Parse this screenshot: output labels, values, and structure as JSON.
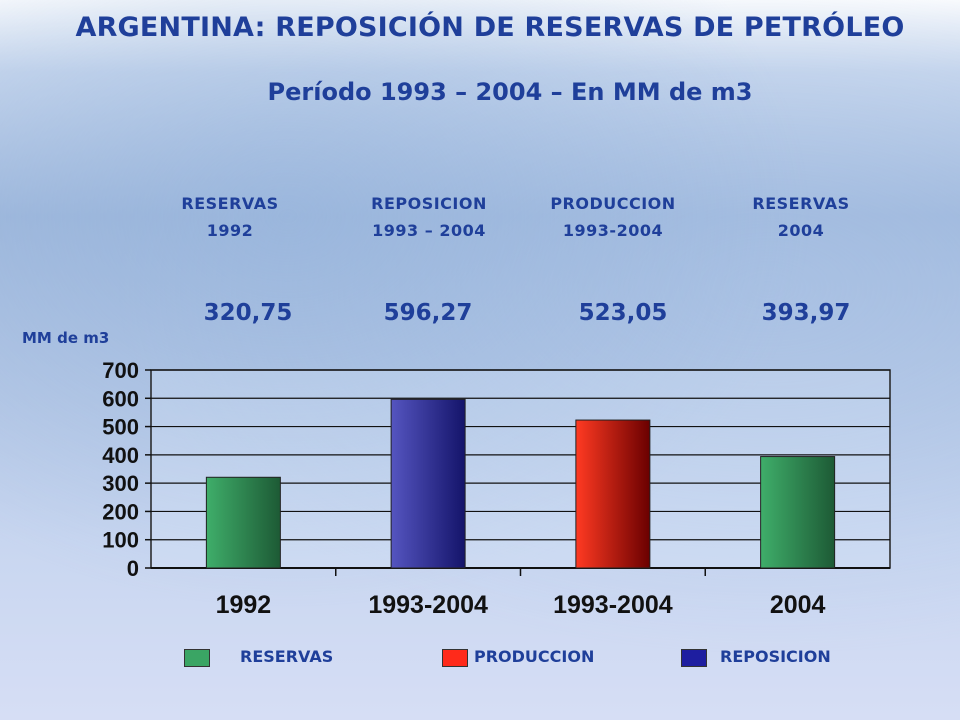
{
  "header": {
    "title": "ARGENTINA: REPOSICIÓN DE RESERVAS DE PETRÓLEO",
    "subtitle": "Período 1993 – 2004 – En MM de m3"
  },
  "columns": [
    {
      "line1": "RESERVAS",
      "line2": "1992",
      "value": "320,75"
    },
    {
      "line1": "REPOSICION",
      "line2": "1993 – 2004",
      "value": "596,27"
    },
    {
      "line1": "PRODUCCION",
      "line2": "1993-2004",
      "value": "523,05"
    },
    {
      "line1": "RESERVAS",
      "line2": "2004",
      "value": "393,97"
    }
  ],
  "legend": {
    "items": [
      {
        "label": "RESERVAS",
        "color": "#3aa564"
      },
      {
        "label": "PRODUCCION",
        "color": "#ff2a1a"
      },
      {
        "label": "REPOSICION",
        "color": "#1e1ea0"
      }
    ]
  },
  "chart_data": {
    "type": "bar",
    "ylabel": "MM de m3",
    "xlabel": "",
    "title": "",
    "categories": [
      "1992",
      "1993-2004",
      "1993-2004",
      "2004"
    ],
    "values": [
      320.75,
      596.27,
      523.05,
      393.97
    ],
    "series_kind": [
      "RESERVAS",
      "REPOSICION",
      "PRODUCCION",
      "RESERVAS"
    ],
    "ylim": [
      0,
      700
    ],
    "yticks": [
      0,
      100,
      200,
      300,
      400,
      500,
      600,
      700
    ],
    "grid": true,
    "legend_position": "bottom",
    "colors": {
      "RESERVAS": [
        "#3fae6a",
        "#1d5a35"
      ],
      "REPOSICION": [
        "#5555c0",
        "#14146a"
      ],
      "PRODUCCION": [
        "#ff3a22",
        "#6a0000"
      ]
    }
  }
}
